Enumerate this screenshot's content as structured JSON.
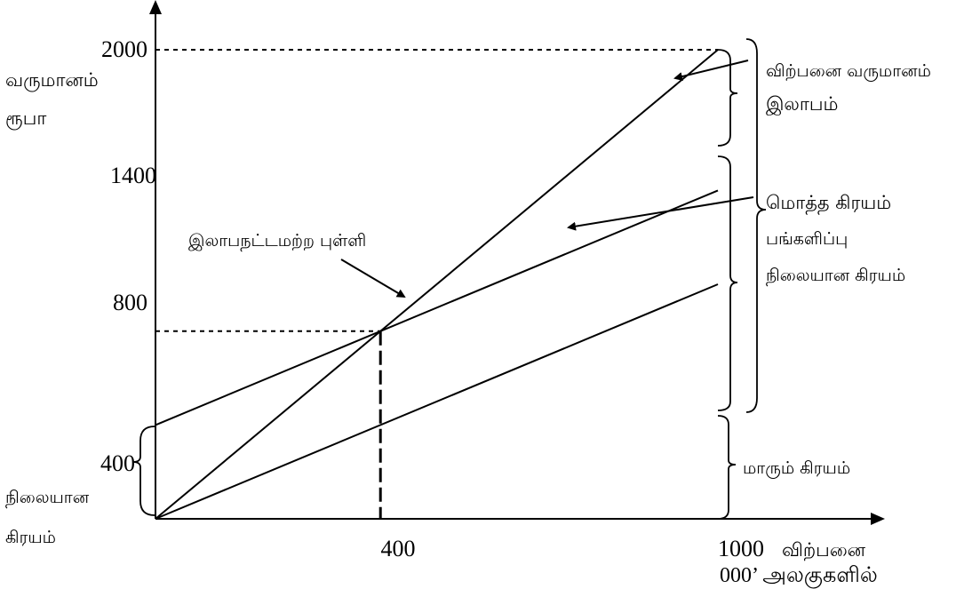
{
  "chart_data": {
    "type": "line",
    "title": "",
    "xlabel": "விற்பனை",
    "xlabel_unit": "000’ அலகுகளில்",
    "ylabel": "வருமானம்",
    "ylabel_unit": "ரூபா",
    "xlim": [
      0,
      1000
    ],
    "ylim": [
      0,
      2000
    ],
    "x_ticks": [
      "400",
      "1000"
    ],
    "y_ticks": [
      "400",
      "800",
      "1400",
      "2000"
    ],
    "series": [
      {
        "key": "sales_revenue",
        "x": [
          0,
          1000
        ],
        "y": [
          0,
          2000
        ]
      },
      {
        "key": "total_cost",
        "x": [
          0,
          1000
        ],
        "y": [
          400,
          1400
        ]
      },
      {
        "key": "variable_cost",
        "x": [
          0,
          1000
        ],
        "y": [
          0,
          1000
        ]
      }
    ],
    "break_even": {
      "x": 400,
      "y": 800,
      "label": "இலாபநட்டமற்ற புள்ளி"
    },
    "annotations": {
      "revenue": "விற்பனை வருமானம்",
      "profit": "இலாபம்",
      "total_cost": "மொத்த கிரயம்",
      "contribution": "பங்களிப்பு",
      "fixed_cost_right": "நிலையான கிரயம்",
      "variable_cost": "மாரும் கிரயம்",
      "fixed_cost_left_1": "நிலையான",
      "fixed_cost_left_2": "கிரயம்"
    }
  }
}
